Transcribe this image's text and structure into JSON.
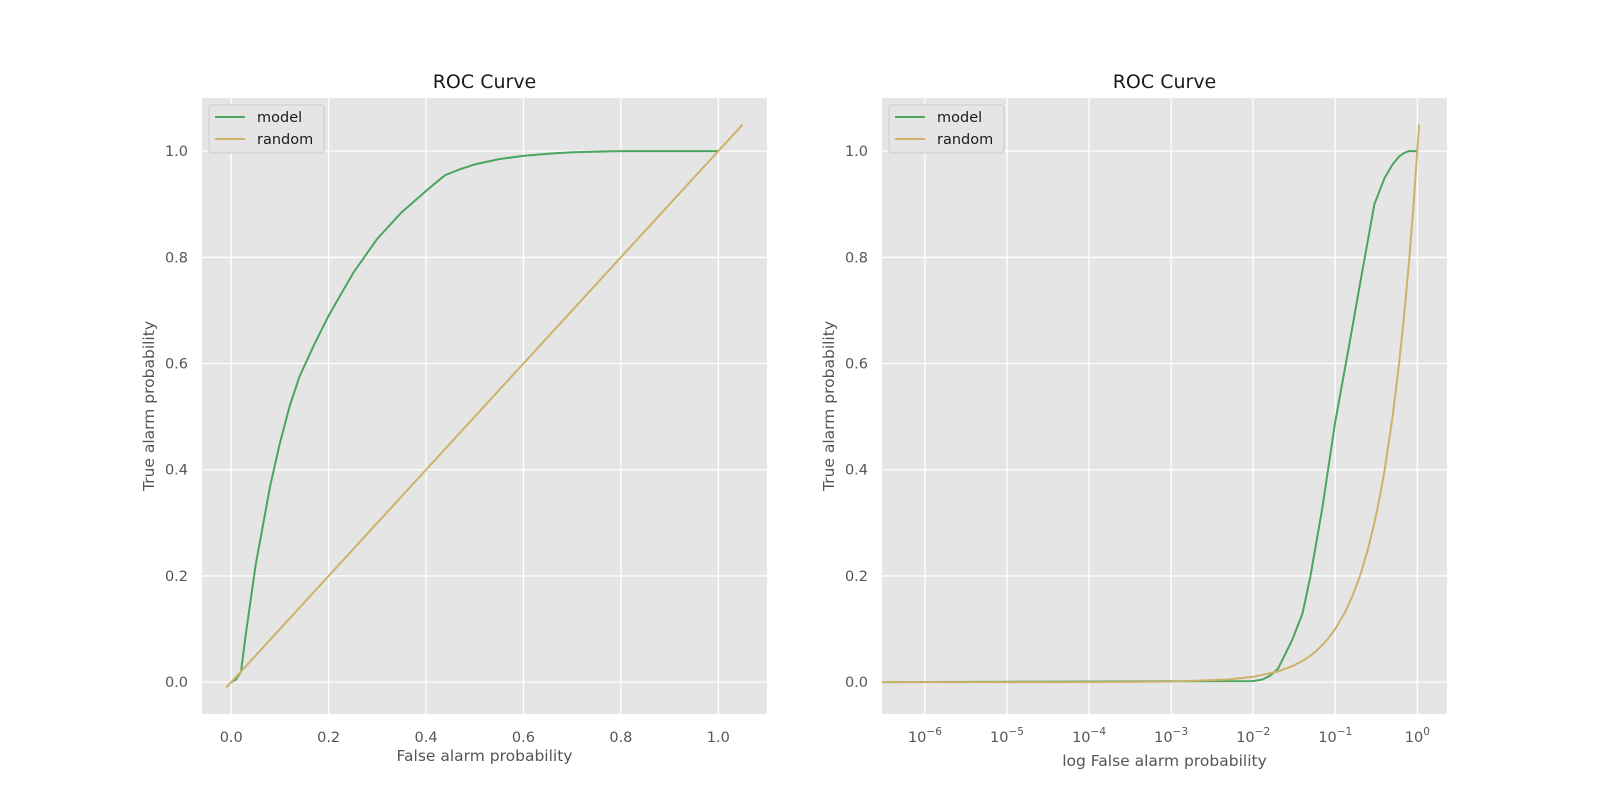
{
  "colors": {
    "background": "#ffffff",
    "axes_face": "#e5e5e5",
    "grid": "#ffffff",
    "model": "#4aa55f",
    "random": "#cdb26a",
    "text": "#555555"
  },
  "chart_data": [
    {
      "type": "line",
      "title": "ROC Curve",
      "xlabel": "False alarm probability",
      "ylabel": "True alarm probability",
      "xscale": "linear",
      "xlim": [
        -0.06,
        1.1
      ],
      "ylim": [
        -0.06,
        1.1
      ],
      "xticks": [
        0.0,
        0.2,
        0.4,
        0.6,
        0.8,
        1.0
      ],
      "xtick_labels": [
        "0.0",
        "0.2",
        "0.4",
        "0.6",
        "0.8",
        "1.0"
      ],
      "yticks": [
        0.0,
        0.2,
        0.4,
        0.6,
        0.8,
        1.0
      ],
      "ytick_labels": [
        "0.0",
        "0.2",
        "0.4",
        "0.6",
        "0.8",
        "1.0"
      ],
      "grid": true,
      "legend": "upper left",
      "series": [
        {
          "name": "model",
          "color": "#4aa55f",
          "x": [
            0.0,
            0.01,
            0.02,
            0.03,
            0.05,
            0.08,
            0.1,
            0.12,
            0.14,
            0.17,
            0.2,
            0.25,
            0.3,
            0.35,
            0.4,
            0.43,
            0.44,
            0.47,
            0.5,
            0.55,
            0.6,
            0.65,
            0.7,
            0.8,
            0.9,
            1.0
          ],
          "y": [
            0.0,
            0.005,
            0.02,
            0.09,
            0.22,
            0.37,
            0.45,
            0.52,
            0.575,
            0.635,
            0.69,
            0.77,
            0.835,
            0.885,
            0.925,
            0.948,
            0.955,
            0.966,
            0.975,
            0.985,
            0.991,
            0.995,
            0.998,
            1.0,
            1.0,
            1.0
          ]
        },
        {
          "name": "random",
          "color": "#cdb26a",
          "x": [
            -0.01,
            1.05
          ],
          "y": [
            -0.01,
            1.05
          ]
        }
      ]
    },
    {
      "type": "line",
      "title": "ROC Curve",
      "xlabel": "log False alarm probability",
      "ylabel": "True alarm probability",
      "xscale": "log",
      "xlim": [
        3e-07,
        2.3
      ],
      "ylim": [
        -0.06,
        1.1
      ],
      "xticks": [
        1e-06,
        1e-05,
        0.0001,
        0.001,
        0.01,
        0.1,
        1.0
      ],
      "xtick_labels": [
        {
          "base": "10",
          "exp": "−6"
        },
        {
          "base": "10",
          "exp": "−5"
        },
        {
          "base": "10",
          "exp": "−4"
        },
        {
          "base": "10",
          "exp": "−3"
        },
        {
          "base": "10",
          "exp": "−2"
        },
        {
          "base": "10",
          "exp": "−1"
        },
        {
          "base": "10",
          "exp": "0"
        }
      ],
      "yticks": [
        0.0,
        0.2,
        0.4,
        0.6,
        0.8,
        1.0
      ],
      "ytick_labels": [
        "0.0",
        "0.2",
        "0.4",
        "0.6",
        "0.8",
        "1.0"
      ],
      "grid": true,
      "legend": "upper left",
      "series": [
        {
          "name": "model",
          "color": "#4aa55f",
          "x": [
            3e-07,
            0.01,
            0.013,
            0.016,
            0.02,
            0.025,
            0.03,
            0.04,
            0.05,
            0.07,
            0.1,
            0.15,
            0.2,
            0.3,
            0.4,
            0.5,
            0.6,
            0.7,
            0.8,
            0.9,
            1.0
          ],
          "y": [
            0.0,
            0.002,
            0.005,
            0.012,
            0.025,
            0.055,
            0.08,
            0.13,
            0.2,
            0.33,
            0.49,
            0.64,
            0.75,
            0.9,
            0.95,
            0.975,
            0.99,
            0.997,
            1.0,
            1.0,
            1.0
          ]
        },
        {
          "name": "random",
          "color": "#cdb26a",
          "x": [
            3e-07,
            1e-05,
            0.0001,
            0.001,
            0.005,
            0.01,
            0.02,
            0.03,
            0.04,
            0.05,
            0.06,
            0.08,
            0.1,
            0.13,
            0.16,
            0.2,
            0.25,
            0.3,
            0.35,
            0.4,
            0.5,
            0.6,
            0.7,
            0.8,
            0.9,
            1.05
          ],
          "y": [
            0.0,
            0.0,
            0.0001,
            0.001,
            0.005,
            0.01,
            0.02,
            0.03,
            0.04,
            0.05,
            0.06,
            0.08,
            0.1,
            0.13,
            0.16,
            0.2,
            0.25,
            0.3,
            0.35,
            0.4,
            0.5,
            0.6,
            0.7,
            0.8,
            0.9,
            1.05
          ]
        }
      ]
    }
  ]
}
